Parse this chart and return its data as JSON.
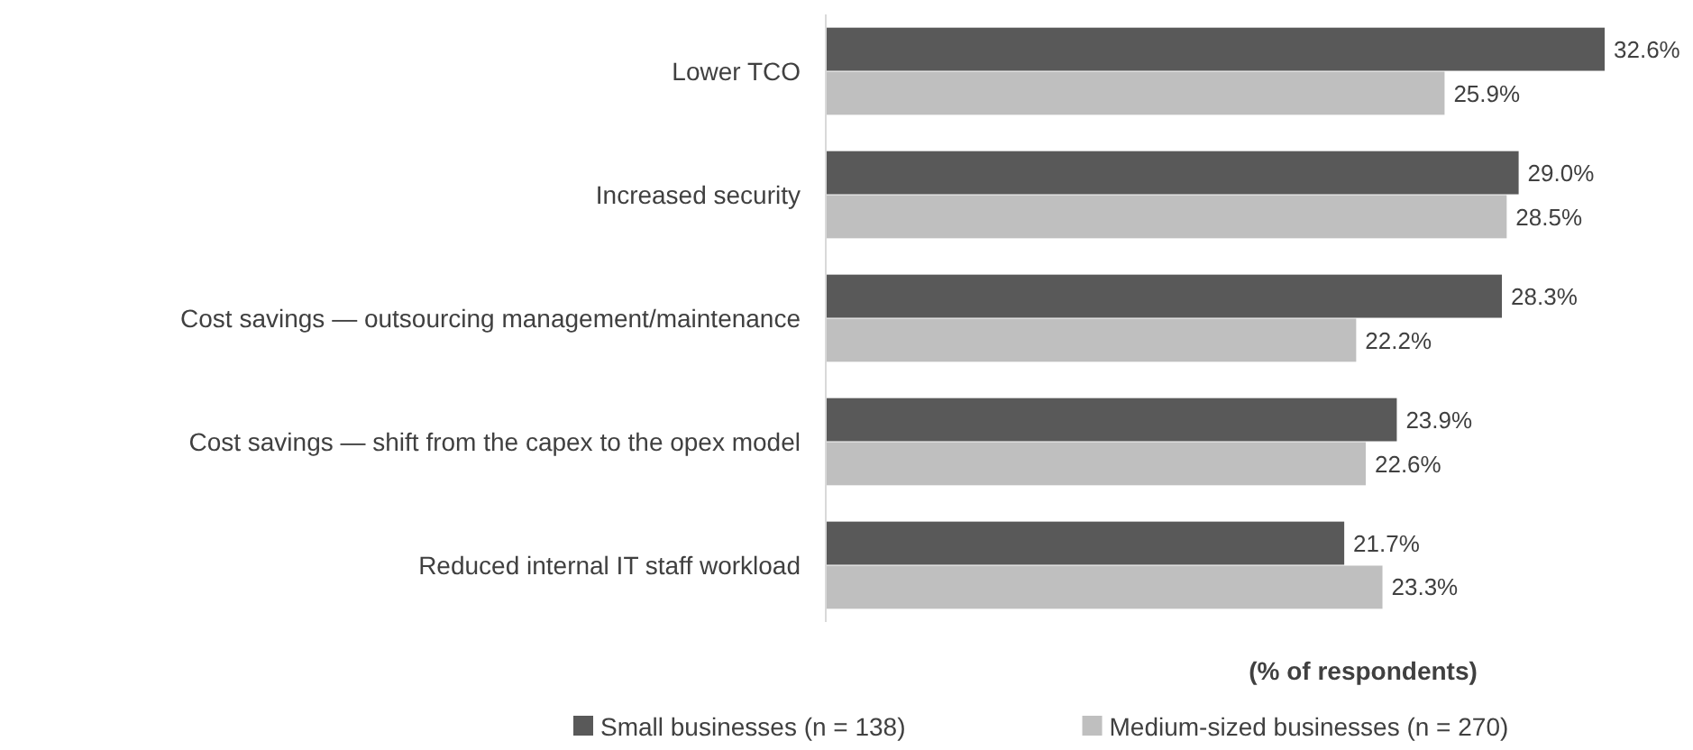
{
  "chart_data": {
    "type": "bar",
    "orientation": "horizontal",
    "categories": [
      "Lower TCO",
      "Increased security",
      "Cost savings — outsourcing management/maintenance",
      "Cost savings — shift from the capex to the opex model",
      "Reduced internal IT staff workload"
    ],
    "series": [
      {
        "name": "Small businesses (n = 138)",
        "color": "#595959",
        "values": [
          32.6,
          29.0,
          28.3,
          23.9,
          21.7
        ],
        "value_labels": [
          "32.6%",
          "29.0%",
          "28.3%",
          "23.9%",
          "21.7%"
        ]
      },
      {
        "name": "Medium-sized businesses (n = 270)",
        "color": "#bfbfbf",
        "values": [
          25.9,
          28.5,
          22.2,
          22.6,
          23.3
        ],
        "value_labels": [
          "25.9%",
          "28.5%",
          "22.2%",
          "22.6%",
          "23.3%"
        ]
      }
    ],
    "xlabel": "(% of respondents)",
    "legend": "bottom",
    "tick_labels": "y"
  }
}
